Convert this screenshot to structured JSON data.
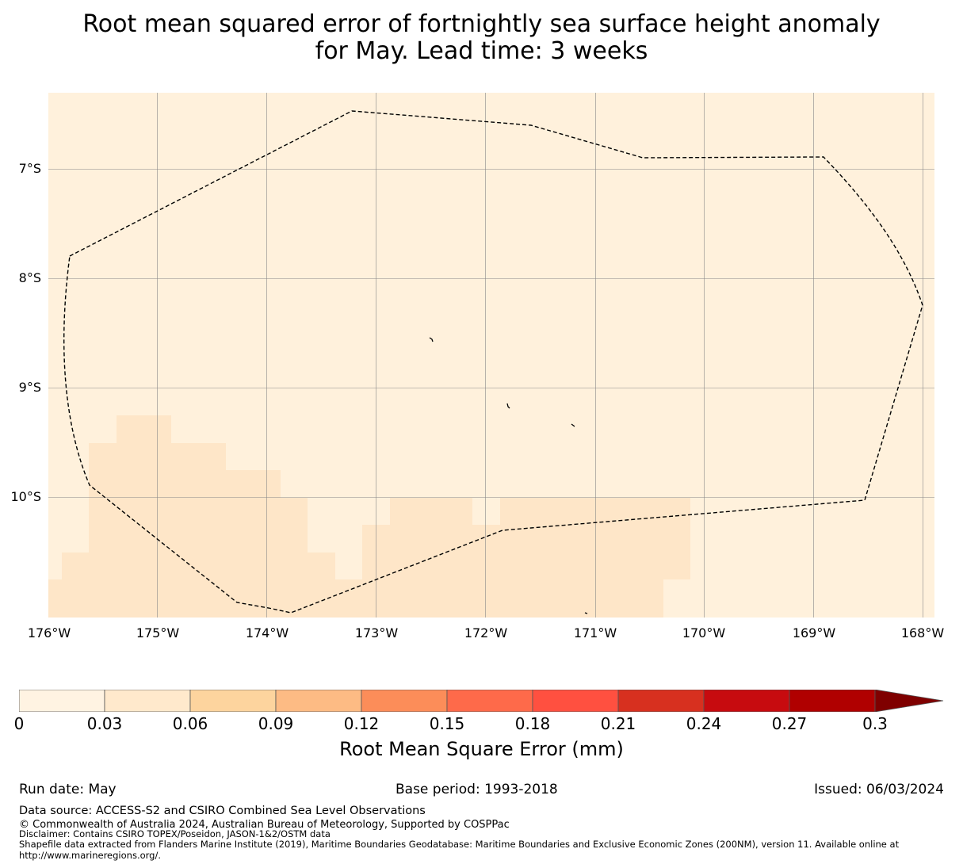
{
  "title": {
    "line1": "Root mean squared error of fortnightly sea surface height anomaly",
    "line2": "for May. Lead time: 3 weeks"
  },
  "map": {
    "lat_labels": [
      "7°S",
      "8°S",
      "9°S",
      "10°S"
    ],
    "lon_labels": [
      "176°W",
      "175°W",
      "174°W",
      "173°W",
      "172°W",
      "171°W",
      "170°W",
      "169°W",
      "168°W"
    ],
    "colors": {
      "background_bin": "#fff1dc",
      "second_bin": "#fee6c8",
      "boundary": "#000000",
      "grid": "#888888"
    }
  },
  "colorbar": {
    "ticks": [
      "0",
      "0.03",
      "0.06",
      "0.09",
      "0.12",
      "0.15",
      "0.18",
      "0.21",
      "0.24",
      "0.27",
      "0.3"
    ],
    "colors": [
      "#fff3e2",
      "#ffe9cc",
      "#fdd49e",
      "#fdbb84",
      "#fc8d59",
      "#fe6a4a",
      "#ff5040",
      "#d7301f",
      "#c70b0f",
      "#b00000",
      "#7f0000"
    ],
    "label": "Root Mean Square Error (mm)"
  },
  "footer": {
    "run_date": "Run date: May",
    "base_period": "Base period: 1993-2018",
    "issued": "Issued: 06/03/2024",
    "data_source": "Data source: ACCESS-S2 and CSIRO Combined Sea Level Observations",
    "copyright": "© Commonwealth of Australia 2024, Australian Bureau of Meteorology, Supported by COSPPac",
    "disclaimer": "Disclaimer: Contains CSIRO TOPEX/Poseidon, JASON-1&2/OSTM data",
    "shapefile": "Shapefile data extracted from Flanders Marine Institute (2019), Maritime Boundaries Geodatabase: Maritime Boundaries and Exclusive Economic Zones (200NM), version 11. Available online at http://www.marineregions.org/."
  }
}
